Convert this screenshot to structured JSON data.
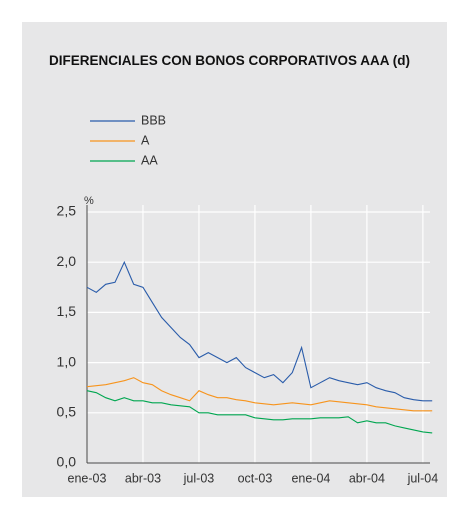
{
  "chart_data": {
    "type": "line",
    "title": "DIFERENCIALES CON BONOS CORPORATIVOS AAA (d)",
    "ylabel": "%",
    "categories": [
      "ene-03",
      null,
      null,
      null,
      null,
      null,
      "abr-03",
      null,
      null,
      null,
      null,
      null,
      "jul-03",
      null,
      null,
      null,
      null,
      null,
      "oct-03",
      null,
      null,
      null,
      null,
      null,
      "ene-04",
      null,
      null,
      null,
      null,
      null,
      "abr-04",
      null,
      null,
      null,
      null,
      null,
      "jul-04",
      null
    ],
    "series": [
      {
        "name": "BBB",
        "color": "#2a5caa",
        "values": [
          1.75,
          1.7,
          1.78,
          1.8,
          2.0,
          1.78,
          1.75,
          1.6,
          1.45,
          1.35,
          1.25,
          1.18,
          1.05,
          1.1,
          1.05,
          1.0,
          1.05,
          0.95,
          0.9,
          0.85,
          0.88,
          0.8,
          0.9,
          1.15,
          0.75,
          0.8,
          0.85,
          0.82,
          0.8,
          0.78,
          0.8,
          0.75,
          0.72,
          0.7,
          0.65,
          0.63,
          0.62,
          0.62
        ]
      },
      {
        "name": "A",
        "color": "#f7941d",
        "values": [
          0.76,
          0.77,
          0.78,
          0.8,
          0.82,
          0.85,
          0.8,
          0.78,
          0.72,
          0.68,
          0.65,
          0.62,
          0.72,
          0.68,
          0.65,
          0.65,
          0.63,
          0.62,
          0.6,
          0.59,
          0.58,
          0.59,
          0.6,
          0.59,
          0.58,
          0.6,
          0.62,
          0.61,
          0.6,
          0.59,
          0.58,
          0.56,
          0.55,
          0.54,
          0.53,
          0.52,
          0.52,
          0.52
        ]
      },
      {
        "name": "AA",
        "color": "#00a650",
        "values": [
          0.72,
          0.7,
          0.65,
          0.62,
          0.65,
          0.62,
          0.62,
          0.6,
          0.6,
          0.58,
          0.57,
          0.56,
          0.5,
          0.5,
          0.48,
          0.48,
          0.48,
          0.48,
          0.45,
          0.44,
          0.43,
          0.43,
          0.44,
          0.44,
          0.44,
          0.45,
          0.45,
          0.45,
          0.46,
          0.4,
          0.42,
          0.4,
          0.4,
          0.37,
          0.35,
          0.33,
          0.31,
          0.3
        ]
      }
    ],
    "ylim": [
      0,
      2.5
    ],
    "yticks": [
      {
        "value": 0,
        "label": "0,0"
      },
      {
        "value": 0.5,
        "label": "0,5"
      },
      {
        "value": 1,
        "label": "1,0"
      },
      {
        "value": 1.5,
        "label": "1,5"
      },
      {
        "value": 2,
        "label": "2,0"
      },
      {
        "value": 2.5,
        "label": "2,5"
      }
    ],
    "grid": true
  }
}
